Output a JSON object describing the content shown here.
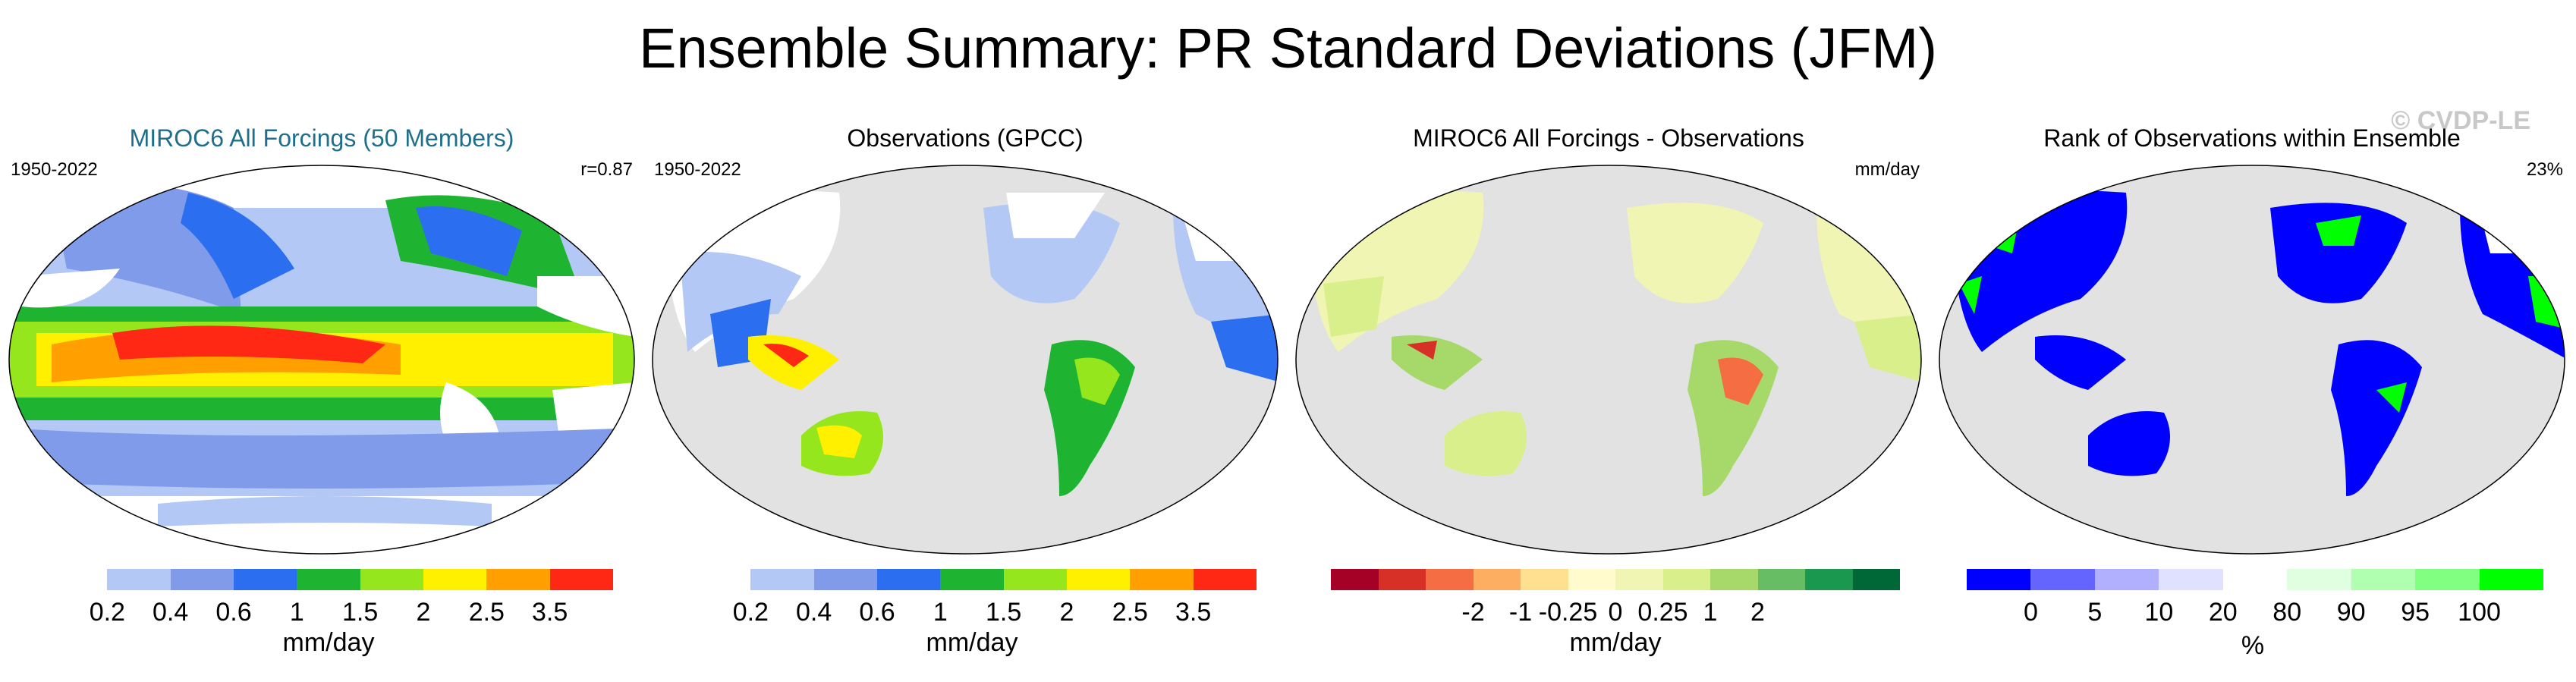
{
  "title": "Ensemble Summary: PR Standard Deviations (JFM)",
  "watermark": "© CVDP-LE",
  "panels": [
    {
      "title": "MIROC6 All Forcings (50 Members)",
      "left_label": "1950-2022",
      "right_label": "r=0.87",
      "unit": "mm/day",
      "colors": [
        "#ffffff",
        "#b4c8f5",
        "#7f9bea",
        "#2b6ef0",
        "#1eb432",
        "#96e61e",
        "#fff000",
        "#ffa000",
        "#ff2814"
      ],
      "ticks": [
        "0.2",
        "0.4",
        "0.6",
        "1",
        "1.5",
        "2",
        "2.5",
        "3.5"
      ]
    },
    {
      "title": "Observations (GPCC)",
      "left_label": "1950-2022",
      "right_label": "",
      "unit": "mm/day",
      "colors": [
        "#ffffff",
        "#b4c8f5",
        "#7f9bea",
        "#2b6ef0",
        "#1eb432",
        "#96e61e",
        "#fff000",
        "#ffa000",
        "#ff2814"
      ],
      "ticks": [
        "0.2",
        "0.4",
        "0.6",
        "1",
        "1.5",
        "2",
        "2.5",
        "3.5"
      ]
    },
    {
      "title": "MIROC6 All Forcings - Observations",
      "left_label": "",
      "right_label": "mm/day",
      "unit": "mm/day",
      "colors": [
        "#a50026",
        "#d73027",
        "#f46d43",
        "#fdae61",
        "#fee090",
        "#fffbcc",
        "#f0f5b4",
        "#d9ef8b",
        "#a6d96a",
        "#66bd63",
        "#1a9850",
        "#006837"
      ],
      "ticks": [
        "-2",
        "-1",
        "-0.25",
        "0",
        "0.25",
        "1",
        "2"
      ]
    },
    {
      "title": "Rank of Observations within Ensemble",
      "left_label": "",
      "right_label": "23%",
      "unit": "%",
      "colors": [
        "#0000ff",
        "#6464ff",
        "#b0b0ff",
        "#e0e0ff",
        "#ffffff",
        "#e0ffe0",
        "#b0ffb0",
        "#80ff80",
        "#00ff00"
      ],
      "ticks": [
        "0",
        "5",
        "10",
        "20",
        "80",
        "90",
        "95",
        "100"
      ]
    }
  ]
}
